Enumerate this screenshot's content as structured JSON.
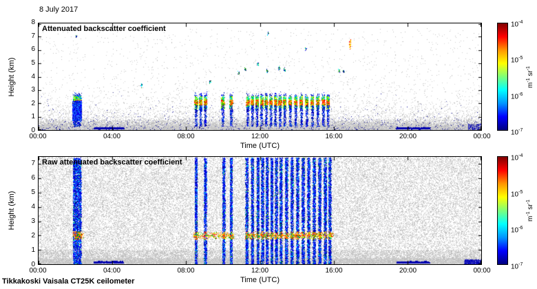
{
  "chart_data": {
    "type": "heatmap",
    "date_label": "8 July 2017",
    "footer_label": "Tikkakoski Vaisala CT25K ceilometer",
    "xlabel": "Time (UTC)",
    "ylabel": "Height (km)",
    "x_tick_labels": [
      "00:00",
      "04:00",
      "08:00",
      "12:00",
      "16:00",
      "20:00",
      "00:00"
    ],
    "x_range_hours": [
      0,
      24
    ],
    "colorbar": {
      "tick_labels": [
        "10^-4",
        "10^-5",
        "10^-6",
        "10^-7"
      ],
      "unit_label": "m^-1 sr^-1",
      "value_min": 1e-07,
      "value_max": 0.0001,
      "gradient_colors_top_to_bottom": [
        "#7f0000",
        "#ff0000",
        "#ff9500",
        "#ffff00",
        "#7dff7a",
        "#00ffff",
        "#0095ff",
        "#0000ff",
        "#00007f"
      ]
    },
    "panels": [
      {
        "id": "processed",
        "title": "Attenuated backscatter coefficient",
        "ylim_km": [
          0,
          8
        ],
        "y_tick_labels": [
          0,
          1,
          2,
          3,
          4,
          5,
          6,
          7,
          8
        ],
        "cloud_base_km": 2.0,
        "cloud_events_hours": [
          8.55,
          8.8,
          9.05,
          10.0,
          10.45,
          11.35,
          11.6,
          11.85,
          12.1,
          12.35,
          12.6,
          12.85,
          13.1,
          13.35,
          13.65,
          13.95,
          14.25,
          14.55,
          14.85,
          15.15,
          15.45,
          15.7
        ],
        "deep_events_hours": [
          1.95,
          2.05,
          2.15,
          2.25
        ],
        "elevated_spots": [
          {
            "t": 2.05,
            "h": 7.0,
            "warm": false
          },
          {
            "t": 5.6,
            "h": 3.35,
            "warm": false
          },
          {
            "t": 9.3,
            "h": 3.6,
            "warm": false
          },
          {
            "t": 10.85,
            "h": 4.3,
            "warm": false
          },
          {
            "t": 11.2,
            "h": 4.55,
            "warm": false
          },
          {
            "t": 11.9,
            "h": 4.95,
            "warm": false
          },
          {
            "t": 12.4,
            "h": 4.4,
            "warm": false
          },
          {
            "t": 12.45,
            "h": 7.25,
            "warm": false
          },
          {
            "t": 13.05,
            "h": 4.6,
            "warm": false
          },
          {
            "t": 13.35,
            "h": 4.5,
            "warm": false
          },
          {
            "t": 14.5,
            "h": 6.05,
            "warm": false
          },
          {
            "t": 16.3,
            "h": 4.45,
            "warm": false
          },
          {
            "t": 16.55,
            "h": 4.4,
            "warm": false
          },
          {
            "t": 16.9,
            "h": 6.45,
            "warm": true
          }
        ],
        "surface_segments_hours": [
          [
            3.0,
            4.6
          ],
          [
            19.4,
            21.2
          ]
        ]
      },
      {
        "id": "raw",
        "title": "Raw attenuated backscatter coefficient",
        "ylim_km": [
          0,
          7.5
        ],
        "y_tick_labels": [
          0,
          1,
          2,
          3,
          4,
          5,
          6,
          7
        ],
        "cloud_base_km": 2.0,
        "full_column_events_hours": [
          1.95,
          2.1,
          2.25,
          8.55,
          9.05,
          10.05,
          10.45,
          11.3,
          11.6,
          11.9,
          12.15,
          12.4,
          12.65,
          12.9,
          13.15,
          13.45,
          13.75,
          14.05,
          14.35,
          14.65,
          14.95,
          15.25,
          15.55,
          15.8
        ],
        "cloud_line_ranges_hours": [
          [
            1.85,
            2.45
          ],
          [
            8.4,
            10.6
          ],
          [
            11.2,
            16.0
          ]
        ],
        "surface_segments_hours": [
          [
            3.0,
            4.6
          ],
          [
            19.4,
            21.2
          ]
        ]
      }
    ]
  }
}
